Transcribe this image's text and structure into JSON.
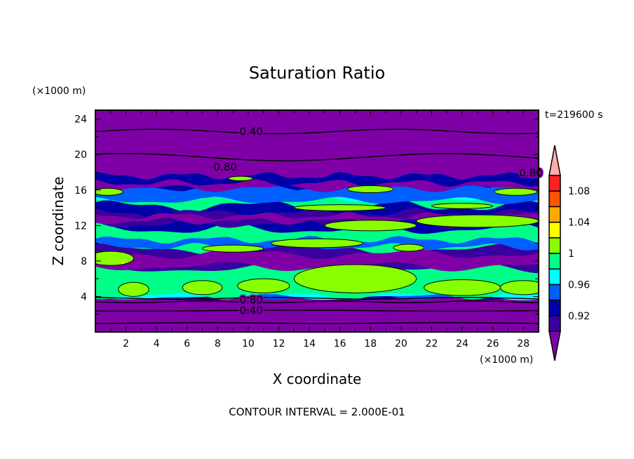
{
  "chart_data": {
    "type": "heatmap",
    "subtype": "filled-contour",
    "title": "Saturation Ratio",
    "xlabel": "X coordinate",
    "ylabel": "Z coordinate",
    "x_units": "(×1000 m)",
    "y_units": "(×1000 m)",
    "time_label": "t=219600 s",
    "footer": "CONTOUR INTERVAL = 2.000E-01",
    "xlim": [
      0,
      29
    ],
    "ylim": [
      0,
      25
    ],
    "x_ticks": [
      2,
      4,
      6,
      8,
      10,
      12,
      14,
      16,
      18,
      20,
      22,
      24,
      26,
      28
    ],
    "y_ticks": [
      4,
      8,
      12,
      16,
      20,
      24
    ],
    "contour_labels": [
      "0.40",
      "0.80",
      "0.80",
      "0.80",
      "0.40"
    ],
    "colorbar": {
      "levels": [
        0.9,
        0.92,
        0.94,
        0.96,
        0.98,
        1.0,
        1.02,
        1.04,
        1.06,
        1.08,
        1.1
      ],
      "tick_labels": [
        "1.08",
        "1.04",
        "1",
        "0.96",
        "0.92"
      ],
      "colors": [
        "#3a00a0",
        "#0000a8",
        "#0060ff",
        "#00ffff",
        "#00ff88",
        "#88ff00",
        "#ffff00",
        "#ffaa00",
        "#ff5500",
        "#ff2222"
      ],
      "under_color": "#8000a8",
      "over_color": "#ffaaaa"
    },
    "grid": false
  }
}
